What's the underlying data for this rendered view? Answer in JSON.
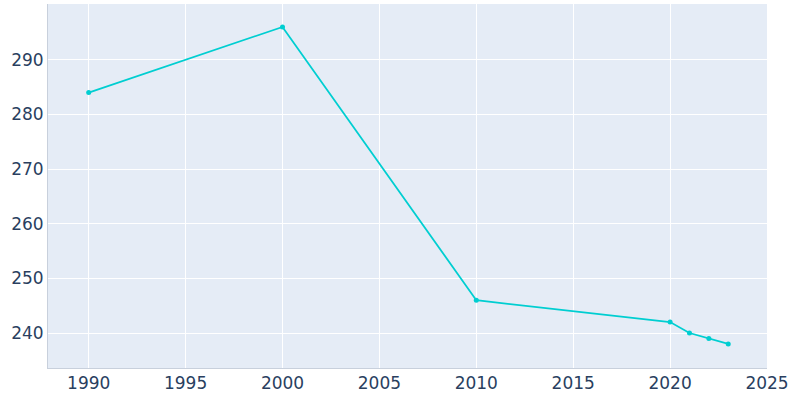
{
  "chart_data": {
    "type": "line",
    "x": [
      1990,
      2000,
      2010,
      2020,
      2021,
      2022,
      2023
    ],
    "values": [
      284,
      296,
      246,
      242,
      240,
      239,
      238
    ],
    "color": "#00ced1",
    "marker": "circle",
    "xlim": [
      1987.9,
      2025
    ],
    "xticks": [
      1990,
      1995,
      2000,
      2005,
      2010,
      2015,
      2020,
      2025
    ],
    "ylim": [
      233.6,
      300.2
    ],
    "yticks": [
      240,
      250,
      260,
      270,
      280,
      290
    ],
    "grid": true
  }
}
